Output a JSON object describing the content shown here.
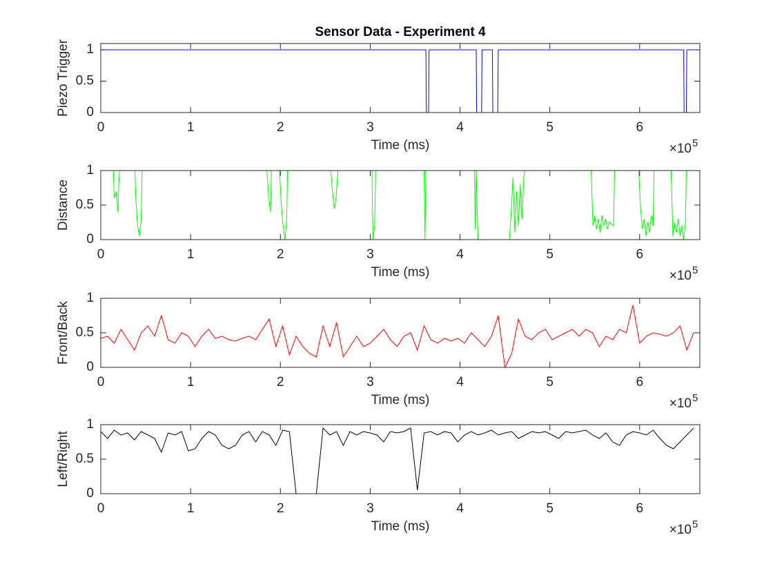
{
  "chart_data": [
    {
      "type": "line",
      "title": "Sensor Data - Experiment 4",
      "x_label": "Time (ms)",
      "y_label": "Piezo Trigger",
      "color": "#0000ff",
      "x_exponent": {
        "base": "×10",
        "power": "5"
      },
      "xlim": [
        0,
        667000
      ],
      "ylim": [
        0,
        1.1
      ],
      "xticks": [
        {
          "value": 0,
          "label": "0"
        },
        {
          "value": 100000,
          "label": "1"
        },
        {
          "value": 200000,
          "label": "2"
        },
        {
          "value": 300000,
          "label": "3"
        },
        {
          "value": 400000,
          "label": "4"
        },
        {
          "value": 500000,
          "label": "5"
        },
        {
          "value": 600000,
          "label": "6"
        }
      ],
      "yticks": [
        0,
        0.5,
        1
      ],
      "x": [
        0,
        362000,
        362500,
        365000,
        365500,
        418000,
        418500,
        424000,
        424500,
        436000,
        436500,
        442000,
        442500,
        649000,
        649500,
        652000,
        652500,
        665000
      ],
      "values": [
        1,
        1,
        0,
        0,
        1,
        1,
        0,
        0,
        1,
        1,
        0,
        0,
        1,
        1,
        0,
        0,
        1,
        1
      ]
    },
    {
      "type": "line",
      "x_label": "Time (ms)",
      "y_label": "Distance",
      "color": "#00ff00",
      "x_exponent": {
        "base": "×10",
        "power": "5"
      },
      "xlim": [
        0,
        667000
      ],
      "ylim": [
        0,
        1
      ],
      "xticks": [
        {
          "value": 0,
          "label": "0"
        },
        {
          "value": 100000,
          "label": "1"
        },
        {
          "value": 200000,
          "label": "2"
        },
        {
          "value": 300000,
          "label": "3"
        },
        {
          "value": 400000,
          "label": "4"
        },
        {
          "value": 500000,
          "label": "5"
        },
        {
          "value": 600000,
          "label": "6"
        }
      ],
      "yticks": [
        0,
        0.5,
        1
      ],
      "x": [
        0,
        14000,
        15000,
        17000,
        19000,
        20000,
        21000,
        38000,
        39000,
        41000,
        43000,
        45000,
        46000,
        185000,
        187000,
        189000,
        190000,
        199000,
        201000,
        203000,
        205000,
        207000,
        208000,
        256000,
        258000,
        260000,
        262000,
        264000,
        302000,
        303000,
        305000,
        306000,
        360000,
        361000,
        362000,
        416000,
        417000,
        418000,
        419000,
        420000,
        421000,
        432000,
        433000,
        455000,
        457000,
        459000,
        461000,
        463000,
        465000,
        467000,
        469000,
        471000,
        472000,
        546000,
        548000,
        550000,
        552000,
        554000,
        556000,
        558000,
        560000,
        562000,
        564000,
        566000,
        571000,
        572000,
        599000,
        601000,
        603000,
        605000,
        607000,
        609000,
        611000,
        613000,
        615000,
        616000,
        635000,
        637000,
        639000,
        641000,
        643000,
        645000,
        647000,
        649000,
        651000,
        652000,
        665000
      ],
      "values": [
        1,
        1,
        0.6,
        0.7,
        0.4,
        0.8,
        1,
        1,
        0.6,
        0.2,
        0.05,
        0.3,
        1,
        1,
        0.6,
        0.4,
        1,
        1,
        0.5,
        0.2,
        0,
        0.3,
        1,
        1,
        0.7,
        0.45,
        0.6,
        1,
        1,
        0,
        0.2,
        1,
        1,
        0,
        1,
        1,
        0.15,
        1,
        0.5,
        0,
        0,
        0,
        0,
        0,
        0.4,
        0.9,
        0.1,
        0.7,
        0.2,
        0.8,
        0.3,
        0.9,
        1,
        1,
        0.2,
        0.35,
        0.15,
        0.3,
        0.1,
        0.35,
        0.2,
        0.3,
        0.15,
        0.25,
        0.2,
        1,
        1,
        0.45,
        0.15,
        0.3,
        0.05,
        0.25,
        0.1,
        0.35,
        0.2,
        1,
        1,
        0.05,
        0.25,
        0.1,
        0.3,
        0.05,
        0.2,
        0,
        0.25,
        1,
        1
      ]
    },
    {
      "type": "line",
      "x_label": "Time (ms)",
      "y_label": "Front/Back",
      "color": "#ff0000",
      "x_exponent": {
        "base": "×10",
        "power": "5"
      },
      "xlim": [
        0,
        667000
      ],
      "ylim": [
        0,
        1
      ],
      "xticks": [
        {
          "value": 0,
          "label": "0"
        },
        {
          "value": 100000,
          "label": "1"
        },
        {
          "value": 200000,
          "label": "2"
        },
        {
          "value": 300000,
          "label": "3"
        },
        {
          "value": 400000,
          "label": "4"
        },
        {
          "value": 500000,
          "label": "5"
        },
        {
          "value": 600000,
          "label": "6"
        }
      ],
      "yticks": [
        0,
        0.5,
        1
      ],
      "x": [
        0,
        7500,
        15000,
        22500,
        30000,
        37500,
        45000,
        52500,
        60000,
        67500,
        75000,
        82500,
        90000,
        97500,
        105000,
        112500,
        120000,
        127500,
        135000,
        142500,
        150000,
        157500,
        165000,
        172500,
        180000,
        187500,
        195000,
        202500,
        210000,
        217500,
        225000,
        232500,
        240000,
        247500,
        255000,
        262500,
        270000,
        277500,
        285000,
        292500,
        300000,
        307500,
        315000,
        322500,
        330000,
        337500,
        345000,
        352500,
        360000,
        367500,
        375000,
        382500,
        390000,
        397500,
        405000,
        412500,
        420000,
        427500,
        435000,
        442500,
        450000,
        457500,
        465000,
        472500,
        480000,
        487500,
        495000,
        502500,
        510000,
        517500,
        525000,
        532500,
        540000,
        547500,
        555000,
        562500,
        570000,
        577500,
        585000,
        592500,
        600000,
        607500,
        615000,
        622500,
        630000,
        637500,
        645000,
        652500,
        660000
      ],
      "values": [
        0.42,
        0.45,
        0.35,
        0.55,
        0.4,
        0.25,
        0.5,
        0.6,
        0.45,
        0.75,
        0.4,
        0.35,
        0.5,
        0.45,
        0.3,
        0.45,
        0.55,
        0.42,
        0.45,
        0.4,
        0.38,
        0.42,
        0.45,
        0.4,
        0.55,
        0.7,
        0.3,
        0.6,
        0.18,
        0.45,
        0.3,
        0.2,
        0.15,
        0.6,
        0.3,
        0.65,
        0.15,
        0.3,
        0.45,
        0.3,
        0.35,
        0.45,
        0.55,
        0.4,
        0.3,
        0.45,
        0.5,
        0.25,
        0.6,
        0.4,
        0.35,
        0.42,
        0.38,
        0.42,
        0.35,
        0.5,
        0.4,
        0.3,
        0.45,
        0.75,
        0,
        0.2,
        0.7,
        0.45,
        0.4,
        0.5,
        0.55,
        0.4,
        0.45,
        0.5,
        0.55,
        0.45,
        0.55,
        0.5,
        0.3,
        0.45,
        0.4,
        0.55,
        0.5,
        0.9,
        0.35,
        0.45,
        0.5,
        0.48,
        0.45,
        0.5,
        0.6,
        0.25,
        0.5
      ]
    },
    {
      "type": "line",
      "x_label": "Time (ms)",
      "y_label": "Left/Right",
      "color": "#000000",
      "x_exponent": {
        "base": "×10",
        "power": "5"
      },
      "xlim": [
        0,
        667000
      ],
      "ylim": [
        0,
        1
      ],
      "xticks": [
        {
          "value": 0,
          "label": "0"
        },
        {
          "value": 100000,
          "label": "1"
        },
        {
          "value": 200000,
          "label": "2"
        },
        {
          "value": 300000,
          "label": "3"
        },
        {
          "value": 400000,
          "label": "4"
        },
        {
          "value": 500000,
          "label": "5"
        },
        {
          "value": 600000,
          "label": "6"
        }
      ],
      "yticks": [
        0,
        0.5,
        1
      ],
      "x": [
        0,
        7500,
        15000,
        22500,
        30000,
        37500,
        45000,
        52500,
        60000,
        67500,
        75000,
        82500,
        90000,
        97500,
        105000,
        112500,
        120000,
        127500,
        135000,
        142500,
        150000,
        157500,
        165000,
        172500,
        180000,
        187500,
        195000,
        202500,
        210000,
        217500,
        225000,
        232500,
        240000,
        247500,
        255000,
        262500,
        270000,
        277500,
        285000,
        292500,
        300000,
        307500,
        315000,
        322500,
        330000,
        337500,
        345000,
        352500,
        360000,
        367500,
        375000,
        382500,
        390000,
        397500,
        405000,
        412500,
        420000,
        427500,
        435000,
        442500,
        450000,
        457500,
        465000,
        472500,
        480000,
        487500,
        495000,
        502500,
        510000,
        517500,
        525000,
        532500,
        540000,
        547500,
        555000,
        562500,
        570000,
        577500,
        585000,
        592500,
        600000,
        607500,
        615000,
        622500,
        630000,
        637500,
        645000,
        652500,
        660000
      ],
      "values": [
        0.9,
        0.8,
        0.92,
        0.85,
        0.88,
        0.78,
        0.9,
        0.85,
        0.8,
        0.6,
        0.88,
        0.85,
        0.9,
        0.62,
        0.65,
        0.8,
        0.9,
        0.85,
        0.7,
        0.65,
        0.7,
        0.85,
        0.9,
        0.75,
        0.9,
        0.85,
        0.7,
        0.92,
        0.9,
        0,
        0,
        0,
        0,
        0.95,
        0.85,
        0.9,
        0.7,
        0.9,
        0.85,
        0.9,
        0.88,
        0.85,
        0.75,
        0.9,
        0.88,
        0.9,
        0.95,
        0.05,
        0.88,
        0.9,
        0.85,
        0.9,
        0.88,
        0.75,
        0.85,
        0.9,
        0.85,
        0.88,
        0.92,
        0.85,
        0.88,
        0.9,
        0.8,
        0.85,
        0.9,
        0.88,
        0.9,
        0.85,
        0.8,
        0.9,
        0.88,
        0.9,
        0.92,
        0.85,
        0.8,
        0.88,
        0.75,
        0.7,
        0.85,
        0.9,
        0.88,
        0.85,
        0.92,
        0.8,
        0.7,
        0.65,
        0.75,
        0.85,
        0.95
      ]
    }
  ]
}
